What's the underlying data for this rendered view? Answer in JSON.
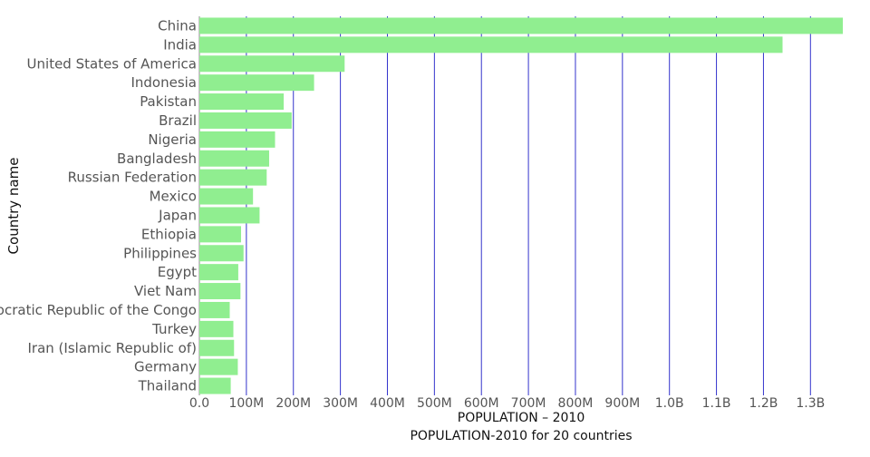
{
  "chart_data": {
    "type": "bar",
    "orientation": "horizontal",
    "categories": [
      "China",
      "India",
      "United States of America",
      "Indonesia",
      "Pakistan",
      "Brazil",
      "Nigeria",
      "Bangladesh",
      "Russian Federation",
      "Mexico",
      "Japan",
      "Ethiopia",
      "Philippines",
      "Egypt",
      "Viet Nam",
      "Democratic Republic of the Congo",
      "Turkey",
      "Iran (Islamic Republic of)",
      "Germany",
      "Thailand"
    ],
    "values": [
      1368810615,
      1240613620,
      309011475,
      244016173,
      179424641,
      196353492,
      160952853,
      148391139,
      143242599,
      114092963,
      128070000,
      88648000,
      93966780,
      82761235,
      87411012,
      64563853,
      72326914,
      73762519,
      81776930,
      66692024
    ],
    "xlabel": "POPULATION – 2010",
    "ylabel": "Country name",
    "footer_text": "POPULATION-2010 for 20 countries",
    "xlim": [
      0,
      1368810615
    ],
    "xticks": [
      0,
      100000000,
      200000000,
      300000000,
      400000000,
      500000000,
      600000000,
      700000000,
      800000000,
      900000000,
      1000000000,
      1100000000,
      1200000000,
      1300000000
    ],
    "xtick_labels": [
      "0.0",
      "100M",
      "200M",
      "300M",
      "400M",
      "500M",
      "600M",
      "700M",
      "800M",
      "900M",
      "1.0B",
      "1.1B",
      "1.2B",
      "1.3B"
    ],
    "grid": true,
    "colors": {
      "bar": "#90ee90",
      "grid": "#3333cc",
      "tick_text": "#555555",
      "label_text": "#111111"
    }
  }
}
